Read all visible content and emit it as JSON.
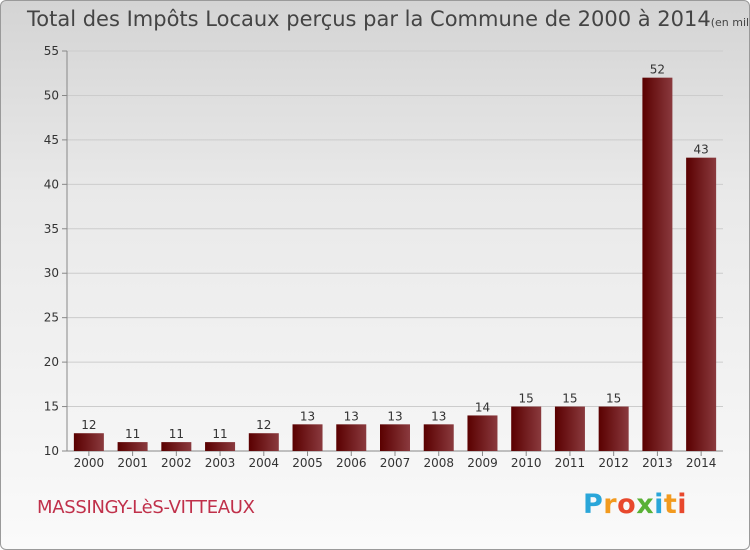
{
  "title": "Total des Impôts Locaux perçus par la Commune de 2000 à 2014",
  "unit": "(en milliers d'€)",
  "commune": "MASSINGY-LèS-VITTEAUX",
  "logo": {
    "text": "Proxiti",
    "letters": [
      {
        "ch": "P",
        "color": "#2aa6d9"
      },
      {
        "ch": "r",
        "color": "#f29a1e"
      },
      {
        "ch": "o",
        "color": "#e8482d"
      },
      {
        "ch": "x",
        "color": "#59b135"
      },
      {
        "ch": "i",
        "color": "#2aa6d9"
      },
      {
        "ch": "t",
        "color": "#f29a1e"
      },
      {
        "ch": "i",
        "color": "#e8482d"
      }
    ]
  },
  "colors": {
    "bar_dark": "#5a0000",
    "bar_light": "#8a3a3e",
    "axis": "#888888",
    "grid": "#cccccc",
    "text": "#333333"
  },
  "chart_data": {
    "type": "bar",
    "categories": [
      "2000",
      "2001",
      "2002",
      "2003",
      "2004",
      "2005",
      "2006",
      "2007",
      "2008",
      "2009",
      "2010",
      "2011",
      "2012",
      "2013",
      "2014"
    ],
    "values": [
      12,
      11,
      11,
      11,
      12,
      13,
      13,
      13,
      13,
      14,
      15,
      15,
      15,
      52,
      43
    ],
    "ylim": [
      10,
      55
    ],
    "yticks": [
      10,
      15,
      20,
      25,
      30,
      35,
      40,
      45,
      50,
      55
    ],
    "grid": true,
    "data_labels": true
  }
}
